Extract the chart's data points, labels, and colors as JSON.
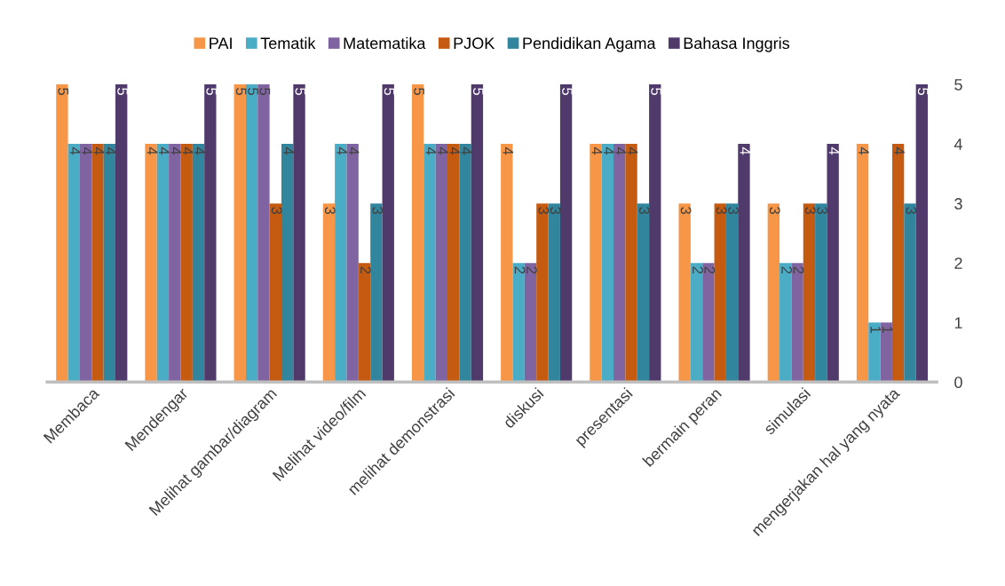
{
  "chart_data": {
    "type": "bar",
    "categories": [
      "Membaca",
      "Mendengar",
      "Melihat gambar/diagram",
      "Melihat video/film",
      "melihat demonstrasi",
      "diskusi",
      "presentasi",
      "bermain peran",
      "simulasi",
      "mengerjakan hal yang nyata"
    ],
    "series": [
      {
        "name": "PAI",
        "color": "#f79646",
        "values": [
          5,
          4,
          5,
          3,
          5,
          4,
          4,
          3,
          3,
          4
        ]
      },
      {
        "name": "Tematik",
        "color": "#4bacc6",
        "values": [
          4,
          4,
          5,
          4,
          4,
          2,
          4,
          2,
          2,
          1
        ]
      },
      {
        "name": "Matematika",
        "color": "#8064a2",
        "values": [
          4,
          4,
          5,
          4,
          4,
          2,
          4,
          2,
          2,
          1
        ]
      },
      {
        "name": "PJOK",
        "color": "#c55a11",
        "values": [
          4,
          4,
          3,
          2,
          4,
          3,
          4,
          3,
          3,
          4
        ]
      },
      {
        "name": "Pendidikan Agama",
        "color": "#31859c",
        "values": [
          4,
          4,
          4,
          3,
          4,
          3,
          3,
          3,
          3,
          3
        ]
      },
      {
        "name": "Bahasa Inggris",
        "color": "#4f3a6b",
        "values": [
          5,
          5,
          5,
          5,
          5,
          5,
          5,
          4,
          4,
          5
        ]
      }
    ],
    "ylim": [
      0,
      5
    ],
    "yticks": [
      0,
      1,
      2,
      3,
      4,
      5
    ],
    "data_labels": true,
    "legend": "top",
    "grid": false
  }
}
